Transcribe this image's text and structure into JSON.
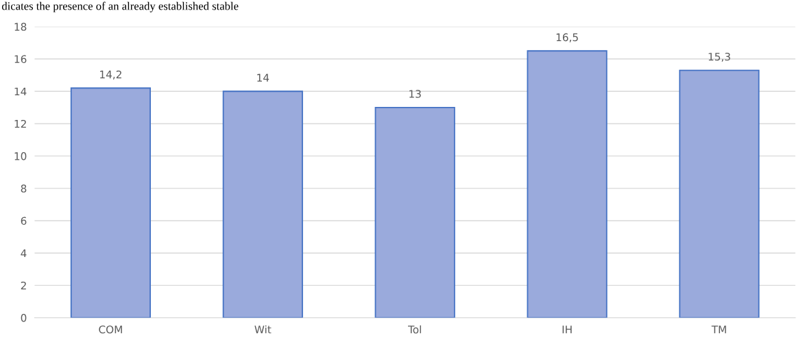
{
  "chart_data": {
    "type": "bar",
    "categories": [
      "COM",
      "Wit",
      "Tol",
      "IH",
      "TM"
    ],
    "values": [
      14.2,
      14,
      13,
      16.5,
      15.3
    ],
    "value_labels": [
      "14,2",
      "14",
      "13",
      "16,5",
      "15,3"
    ],
    "color": "#9aaadc",
    "ylim": [
      0,
      18
    ],
    "yticks": [
      0,
      2,
      4,
      6,
      8,
      10,
      12,
      14,
      16,
      18
    ],
    "grid": "y",
    "annotations": [
      "dicates the presence of an already established stable"
    ]
  }
}
